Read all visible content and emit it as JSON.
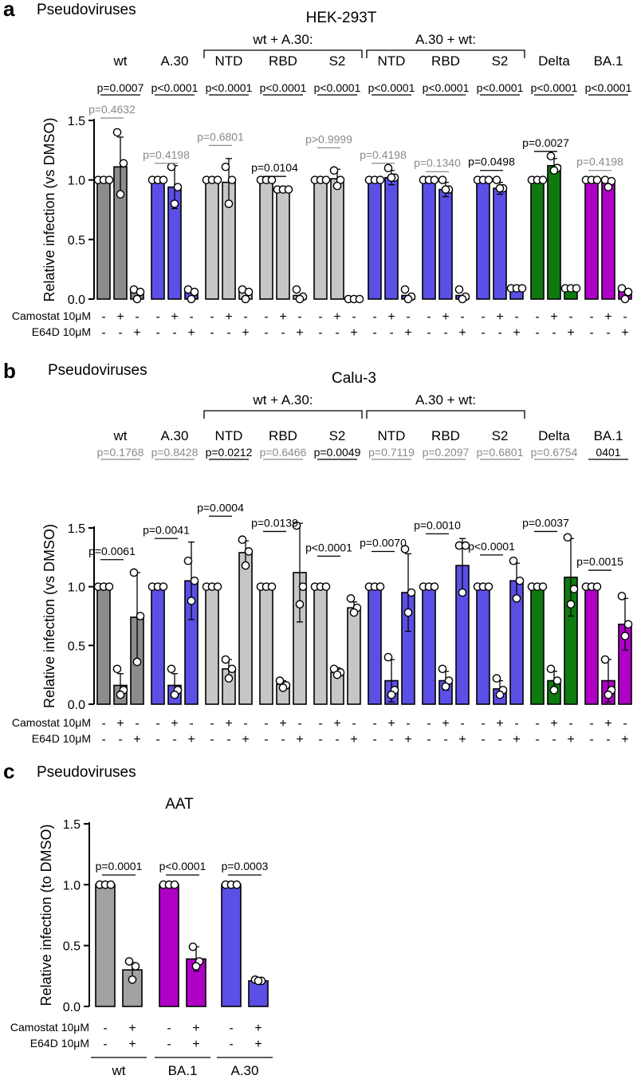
{
  "colors": {
    "darkgray": "#8c8c8c",
    "lightgray": "#c6c6c6",
    "blue": "#5b4fe6",
    "green": "#0f7a0f",
    "magenta": "#b000c8",
    "gray": "#a2a2a2",
    "sig_text": "#000000",
    "nonsig_text": "#8a8a8a"
  },
  "chart_data": [
    {
      "panel": "a",
      "type": "bar",
      "subtitle": "Pseudoviruses",
      "title": "HEK-293T",
      "ylabel": "Relative infection (vs DMSO)",
      "ylim": [
        0,
        1.5
      ],
      "yticks": [
        "0.0",
        "0.5",
        "1.0",
        "1.5"
      ],
      "row_labels": [
        "Camostat 10μM",
        "E64D 10μM"
      ],
      "row_symbols": [
        [
          "-",
          "+",
          "-"
        ],
        [
          "-",
          "-",
          "+"
        ]
      ],
      "group_brackets": [
        {
          "label": "wt + A.30:",
          "from": 2,
          "to": 4
        },
        {
          "label": "A.30 + wt:",
          "from": 5,
          "to": 7
        }
      ],
      "groups": [
        {
          "label": "wt",
          "color_key": "darkgray",
          "values": [
            1.0,
            1.11,
            0.07
          ],
          "errors": [
            0,
            0.25,
            0
          ],
          "points": [
            [
              1.0,
              1.0,
              1.0
            ],
            [
              1.4,
              1.14,
              0.88
            ],
            [
              0.08,
              0.06,
              0.0
            ]
          ],
          "top_p": "p=0.0007",
          "top_sig": true,
          "inner_p": "p=0.4632",
          "inner_sig": false
        },
        {
          "label": "A.30",
          "color_key": "blue",
          "values": [
            1.0,
            0.94,
            0.07
          ],
          "errors": [
            0,
            0.18,
            0
          ],
          "points": [
            [
              1.0,
              1.0,
              1.0
            ],
            [
              1.11,
              0.94,
              0.8
            ],
            [
              0.08,
              0.06,
              0.0
            ]
          ],
          "top_p": "p<0.0001",
          "top_sig": true,
          "inner_p": "p=0.4198",
          "inner_sig": false
        },
        {
          "label": "NTD",
          "color_key": "lightgray",
          "values": [
            1.0,
            0.98,
            0.07
          ],
          "errors": [
            0,
            0.2,
            0
          ],
          "points": [
            [
              1.0,
              1.0,
              1.0
            ],
            [
              1.11,
              1.0,
              0.8
            ],
            [
              0.08,
              0.06,
              0.0
            ]
          ],
          "top_p": "p<0.0001",
          "top_sig": true,
          "inner_p": "p=0.6801",
          "inner_sig": false
        },
        {
          "label": "RBD",
          "color_key": "lightgray",
          "values": [
            1.0,
            0.91,
            0.03
          ],
          "errors": [
            0,
            0,
            0
          ],
          "points": [
            [
              1.0,
              1.0,
              1.0
            ],
            [
              0.92,
              0.92,
              0.92
            ],
            [
              0.08,
              0.02,
              0.0
            ]
          ],
          "top_p": "p<0.0001",
          "top_sig": true,
          "inner_p": "p=0.0104",
          "inner_sig": true
        },
        {
          "label": "S2",
          "color_key": "lightgray",
          "values": [
            1.0,
            1.01,
            0.0
          ],
          "errors": [
            0,
            0.08,
            0
          ],
          "points": [
            [
              1.0,
              1.0,
              1.0
            ],
            [
              1.08,
              1.0,
              0.95
            ],
            [
              0.0,
              0.0,
              0.0
            ]
          ],
          "top_p": "p<0.0001",
          "top_sig": true,
          "inner_p": "p>0.9999",
          "inner_sig": false
        },
        {
          "label": "NTD",
          "color_key": "blue",
          "values": [
            1.0,
            1.02,
            0.03
          ],
          "errors": [
            0,
            0.06,
            0
          ],
          "points": [
            [
              1.0,
              1.0,
              1.0
            ],
            [
              1.1,
              1.02,
              1.02
            ],
            [
              0.08,
              0.02,
              0.0
            ]
          ],
          "top_p": "p<0.0001",
          "top_sig": true,
          "inner_p": "p=0.4198",
          "inner_sig": false
        },
        {
          "label": "RBD",
          "color_key": "blue",
          "values": [
            1.0,
            0.92,
            0.03
          ],
          "errors": [
            0,
            0.06,
            0
          ],
          "points": [
            [
              1.0,
              1.0,
              1.0
            ],
            [
              1.0,
              0.92,
              0.92
            ],
            [
              0.08,
              0.02,
              0.0
            ]
          ],
          "top_p": "p<0.0001",
          "top_sig": true,
          "inner_p": "p=0.1340",
          "inner_sig": false
        },
        {
          "label": "S2",
          "color_key": "blue",
          "values": [
            1.0,
            0.93,
            0.08
          ],
          "errors": [
            0,
            0.05,
            0
          ],
          "points": [
            [
              1.0,
              1.0,
              1.0
            ],
            [
              1.0,
              0.93,
              0.93
            ],
            [
              0.09,
              0.09,
              0.09
            ]
          ],
          "top_p": "p<0.0001",
          "top_sig": true,
          "inner_p": "p=0.0498",
          "inner_sig": true
        },
        {
          "label": "Delta",
          "color_key": "green",
          "values": [
            1.0,
            1.12,
            0.08
          ],
          "errors": [
            0,
            0.06,
            0
          ],
          "points": [
            [
              1.0,
              1.0,
              1.0
            ],
            [
              1.2,
              1.1,
              1.08
            ],
            [
              0.09,
              0.09,
              0.09
            ]
          ],
          "top_p": "p<0.0001",
          "top_sig": true,
          "inner_p": "p=0.0027",
          "inner_sig": true
        },
        {
          "label": "BA.1",
          "color_key": "magenta",
          "values": [
            1.0,
            0.98,
            0.07
          ],
          "errors": [
            0,
            0.03,
            0
          ],
          "points": [
            [
              1.0,
              1.0,
              1.0
            ],
            [
              1.0,
              0.99,
              0.94
            ],
            [
              0.09,
              0.06,
              0.0
            ]
          ],
          "top_p": "p<0.0001",
          "top_sig": true,
          "inner_p": "p=0.4198",
          "inner_sig": false
        }
      ]
    },
    {
      "panel": "b",
      "type": "bar",
      "subtitle": "Pseudoviruses",
      "title": "Calu-3",
      "ylabel": "Relative infection (vs DMSO)",
      "ylim": [
        0,
        1.5
      ],
      "yticks": [
        "0.0",
        "0.5",
        "1.0",
        "1.5"
      ],
      "row_labels": [
        "Camostat 10μM",
        "E64D 10μM"
      ],
      "row_symbols": [
        [
          "-",
          "+",
          "-"
        ],
        [
          "-",
          "-",
          "+"
        ]
      ],
      "group_brackets": [
        {
          "label": "wt + A.30:",
          "from": 2,
          "to": 4
        },
        {
          "label": "A.30 + wt:",
          "from": 5,
          "to": 7
        }
      ],
      "groups": [
        {
          "label": "wt",
          "color_key": "darkgray",
          "values": [
            1.0,
            0.16,
            0.74
          ],
          "errors": [
            0,
            0.1,
            0.38
          ],
          "points": [
            [
              1.0,
              1.0,
              1.0
            ],
            [
              0.3,
              0.12,
              0.08
            ],
            [
              1.12,
              0.75,
              0.36
            ]
          ],
          "top_p": "p=0.1768",
          "top_sig": false,
          "inner_p": "p=0.0061",
          "inner_sig": true
        },
        {
          "label": "A.30",
          "color_key": "blue",
          "values": [
            1.0,
            0.16,
            1.05
          ],
          "errors": [
            0,
            0.1,
            0.33
          ],
          "points": [
            [
              1.0,
              1.0,
              1.0
            ],
            [
              0.3,
              0.12,
              0.08
            ],
            [
              1.22,
              1.05,
              0.88
            ]
          ],
          "top_p": "p=0.8428",
          "top_sig": false,
          "inner_p": "p=0.0041",
          "inner_sig": true
        },
        {
          "label": "NTD",
          "color_key": "lightgray",
          "values": [
            1.0,
            0.3,
            1.29
          ],
          "errors": [
            0,
            0.08,
            0.1
          ],
          "points": [
            [
              1.0,
              1.0,
              1.0
            ],
            [
              0.38,
              0.3,
              0.22
            ],
            [
              1.4,
              1.3,
              1.18
            ]
          ],
          "top_p": "p=0.0212",
          "top_sig": true,
          "inner_p": "p=0.0004",
          "inner_sig": true
        },
        {
          "label": "RBD",
          "color_key": "lightgray",
          "values": [
            1.0,
            0.17,
            1.12
          ],
          "errors": [
            0,
            0.03,
            0.42
          ],
          "points": [
            [
              1.0,
              1.0,
              1.0
            ],
            [
              0.2,
              0.16,
              0.14
            ],
            [
              1.52,
              1.0,
              0.85
            ]
          ],
          "top_p": "p=0.6466",
          "top_sig": false,
          "inner_p": "p=0.0139",
          "inner_sig": true
        },
        {
          "label": "S2",
          "color_key": "lightgray",
          "values": [
            1.0,
            0.27,
            0.82
          ],
          "errors": [
            0,
            0.04,
            0.05
          ],
          "points": [
            [
              1.0,
              1.0,
              1.0
            ],
            [
              0.3,
              0.27,
              0.25
            ],
            [
              0.9,
              0.82,
              0.78
            ]
          ],
          "top_p": "p=0.0049",
          "top_sig": true,
          "inner_p": "p<0.0001",
          "inner_sig": true
        },
        {
          "label": "NTD",
          "color_key": "blue",
          "values": [
            1.0,
            0.2,
            0.95
          ],
          "errors": [
            0,
            0.18,
            0.33
          ],
          "points": [
            [
              1.0,
              1.0,
              1.0
            ],
            [
              0.4,
              0.12,
              0.08
            ],
            [
              1.32,
              0.95,
              0.78
            ]
          ],
          "top_p": "p=0.7119",
          "top_sig": false,
          "inner_p": "p=0.0070",
          "inner_sig": true
        },
        {
          "label": "RBD",
          "color_key": "blue",
          "values": [
            1.0,
            0.2,
            1.18
          ],
          "errors": [
            0,
            0.08,
            0.23
          ],
          "points": [
            [
              1.0,
              1.0,
              1.0
            ],
            [
              0.3,
              0.2,
              0.15
            ],
            [
              1.35,
              1.35,
              0.95
            ]
          ],
          "top_p": "p=0.2097",
          "top_sig": false,
          "inner_p": "p=0.0010",
          "inner_sig": true
        },
        {
          "label": "S2",
          "color_key": "blue",
          "values": [
            1.0,
            0.13,
            1.05
          ],
          "errors": [
            0,
            0.07,
            0.15
          ],
          "points": [
            [
              1.0,
              1.0,
              1.0
            ],
            [
              0.22,
              0.12,
              0.08
            ],
            [
              1.22,
              1.05,
              0.9
            ]
          ],
          "top_p": "p=0.6801",
          "top_sig": false,
          "inner_p": "p<0.0001",
          "inner_sig": true
        },
        {
          "label": "Delta",
          "color_key": "green",
          "values": [
            1.0,
            0.2,
            1.08
          ],
          "errors": [
            0,
            0.08,
            0.33
          ],
          "points": [
            [
              1.0,
              1.0,
              1.0
            ],
            [
              0.3,
              0.2,
              0.12
            ],
            [
              1.42,
              0.98,
              0.85
            ]
          ],
          "top_p": "p=0.6754",
          "top_sig": false,
          "inner_p": "p=0.0037",
          "inner_sig": true
        },
        {
          "label": "BA.1",
          "color_key": "magenta",
          "values": [
            1.0,
            0.2,
            0.68
          ],
          "errors": [
            0,
            0.18,
            0.22
          ],
          "points": [
            [
              1.0,
              1.0,
              1.0
            ],
            [
              0.38,
              0.12,
              0.08
            ],
            [
              0.92,
              0.68,
              0.58
            ]
          ],
          "top_p": "0401",
          "top_sig": true,
          "inner_p": "p=0.0015",
          "inner_sig": true
        }
      ]
    },
    {
      "panel": "c",
      "type": "bar",
      "subtitle": "Pseudoviruses",
      "title": "AAT",
      "ylabel": "Relative infection (to DMSO)",
      "ylim": [
        0,
        1.5
      ],
      "yticks": [
        "0.0",
        "0.5",
        "1.0",
        "1.5"
      ],
      "row_labels": [
        "Camostat 10μM",
        "E64D 10μM"
      ],
      "row_symbols": [
        [
          "-",
          "+"
        ],
        [
          "-",
          "+"
        ]
      ],
      "groups": [
        {
          "label": "wt",
          "color_key": "gray",
          "values": [
            1.0,
            0.3
          ],
          "errors": [
            0,
            0.06
          ],
          "points": [
            [
              1.0,
              1.0,
              1.0
            ],
            [
              0.37,
              0.33,
              0.22
            ]
          ],
          "inner_p": "p=0.0001",
          "inner_sig": true
        },
        {
          "label": "BA.1",
          "color_key": "magenta",
          "values": [
            1.0,
            0.39
          ],
          "errors": [
            0,
            0.1
          ],
          "points": [
            [
              1.0,
              1.0,
              1.0
            ],
            [
              0.49,
              0.37,
              0.33
            ]
          ],
          "inner_p": "p<0.0001",
          "inner_sig": true
        },
        {
          "label": "A.30",
          "color_key": "blue",
          "values": [
            1.0,
            0.21
          ],
          "errors": [
            0,
            0.01
          ],
          "points": [
            [
              1.0,
              1.0,
              1.0
            ],
            [
              0.22,
              0.21,
              0.21
            ]
          ],
          "inner_p": "p=0.0003",
          "inner_sig": true
        }
      ]
    }
  ]
}
